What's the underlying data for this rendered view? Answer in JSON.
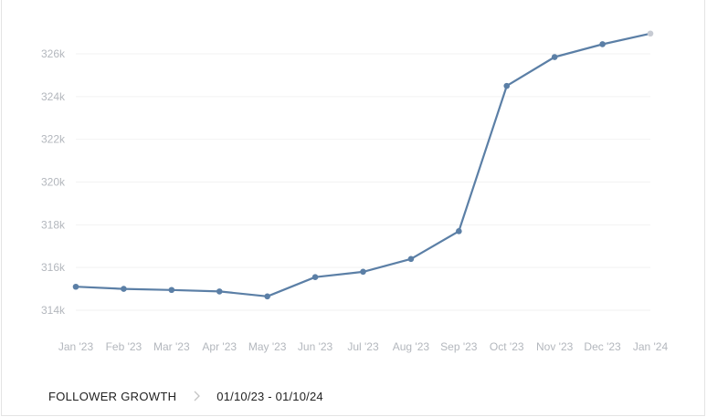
{
  "footer": {
    "title": "FOLLOWER GROWTH",
    "range": "01/10/23 - 01/10/24"
  },
  "chart_data": {
    "type": "line",
    "title": "",
    "xlabel": "",
    "ylabel": "",
    "grid": true,
    "categories": [
      "Jan '23",
      "Feb '23",
      "Mar '23",
      "Apr '23",
      "May '23",
      "Jun '23",
      "Jul '23",
      "Aug '23",
      "Sep '23",
      "Oct '23",
      "Nov '23",
      "Dec '23",
      "Jan '24"
    ],
    "values": [
      315100,
      315000,
      314950,
      314880,
      314650,
      315550,
      315800,
      316400,
      317700,
      324500,
      325850,
      326450,
      326950
    ],
    "yticks": [
      314000,
      316000,
      318000,
      320000,
      322000,
      324000,
      326000
    ],
    "ytick_labels": [
      "314k",
      "316k",
      "318k",
      "320k",
      "322k",
      "324k",
      "326k"
    ],
    "colors": {
      "line": "#5b7fa6",
      "point": "#5b7fa6",
      "last_point": "#c7cbd3",
      "grid": "#f2f2f2",
      "tick": "#b3b7bd"
    }
  }
}
